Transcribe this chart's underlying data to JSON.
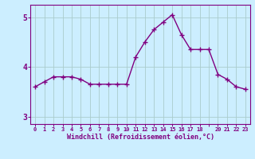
{
  "x": [
    0,
    1,
    2,
    3,
    4,
    5,
    6,
    7,
    8,
    9,
    10,
    11,
    12,
    13,
    14,
    15,
    16,
    17,
    18,
    19,
    20,
    21,
    22,
    23
  ],
  "y": [
    3.6,
    3.7,
    3.8,
    3.8,
    3.8,
    3.75,
    3.65,
    3.65,
    3.65,
    3.65,
    3.65,
    4.2,
    4.5,
    4.75,
    4.9,
    5.05,
    4.65,
    4.35,
    4.35,
    4.35,
    3.85,
    3.75,
    3.6,
    3.55
  ],
  "line_color": "#800080",
  "marker": "+",
  "markersize": 4,
  "linewidth": 1.0,
  "background_color": "#cceeff",
  "grid_color": "#aacccc",
  "xlabel": "Windchill (Refroidissement éolien,°C)",
  "xlabel_color": "#800080",
  "tick_color": "#800080",
  "ylim": [
    2.85,
    5.25
  ],
  "xlim": [
    -0.5,
    23.5
  ],
  "yticks": [
    3,
    4,
    5
  ],
  "xtick_labels": [
    "0",
    "1",
    "2",
    "3",
    "4",
    "5",
    "6",
    "7",
    "8",
    "9",
    "10",
    "11",
    "12",
    "13",
    "14",
    "15",
    "16",
    "17",
    "18",
    "",
    "20",
    "21",
    "22",
    "23"
  ],
  "spine_color": "#800080"
}
